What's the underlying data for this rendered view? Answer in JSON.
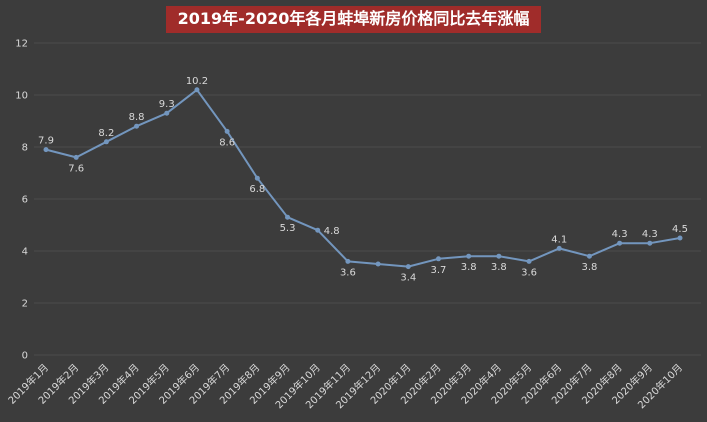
{
  "colors": {
    "background": "#3C3C3C",
    "title_bg": "#A02C2A",
    "title_color": "#FFFFFF",
    "line": "#7396BE",
    "grid": "#4D4D4D",
    "tick": "#D9D9D9",
    "label": "#D9D9D9"
  },
  "chart_data": {
    "type": "line",
    "title": "2019年-2020年各月蚌埠新房价格同比去年涨幅",
    "xlabel": "",
    "ylabel": "",
    "ylim": [
      0,
      12
    ],
    "ytick_step": 2,
    "grid": true,
    "legend": "none",
    "x": [
      "2019年1月",
      "2019年2月",
      "2019年3月",
      "2019年4月",
      "2019年5月",
      "2019年6月",
      "2019年7月",
      "2019年8月",
      "2019年9月",
      "2019年10月",
      "2019年11月",
      "2019年12月",
      "2020年1月",
      "2020年2月",
      "2020年3月",
      "2020年4月",
      "2020年5月",
      "2020年6月",
      "2020年7月",
      "2020年8月",
      "2020年9月",
      "2020年10月"
    ],
    "values": [
      7.9,
      7.6,
      8.2,
      8.8,
      9.3,
      10.2,
      8.6,
      6.8,
      5.3,
      4.8,
      3.6,
      3.5,
      3.4,
      3.7,
      3.8,
      3.8,
      3.6,
      4.1,
      3.8,
      4.3,
      4.3,
      4.5
    ],
    "label_positions": [
      "above",
      "below",
      "above",
      "above",
      "above",
      "above",
      "below",
      "below",
      "below",
      "right",
      "below",
      "none",
      "below",
      "below",
      "below",
      "below",
      "below",
      "above",
      "below",
      "above",
      "above",
      "above"
    ],
    "ytick_labels": [
      "0",
      "2",
      "4",
      "6",
      "8",
      "10",
      "12"
    ]
  }
}
